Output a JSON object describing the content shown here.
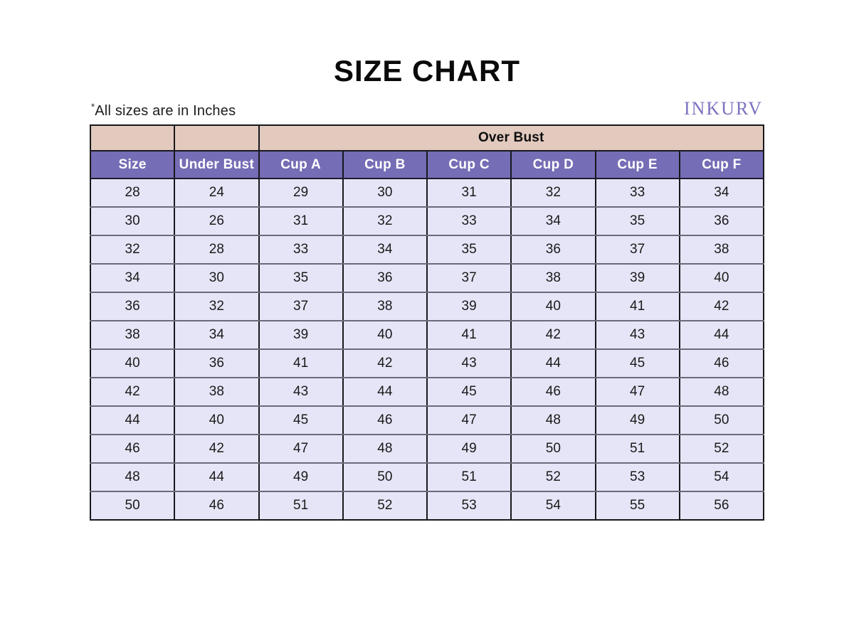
{
  "header": {
    "title": "SIZE CHART",
    "note_star": "*",
    "note_text": "All sizes are in Inches",
    "brand": "INKURV"
  },
  "chart_data": {
    "type": "table",
    "title": "SIZE CHART",
    "over_bust_label": "Over Bust",
    "over_bust_span_columns": [
      "Cup A",
      "Cup B",
      "Cup C",
      "Cup D",
      "Cup E",
      "Cup F"
    ],
    "columns": [
      "Size",
      "Under Bust",
      "Cup A",
      "Cup B",
      "Cup C",
      "Cup D",
      "Cup E",
      "Cup F"
    ],
    "rows": [
      [
        28,
        24,
        29,
        30,
        31,
        32,
        33,
        34
      ],
      [
        30,
        26,
        31,
        32,
        33,
        34,
        35,
        36
      ],
      [
        32,
        28,
        33,
        34,
        35,
        36,
        37,
        38
      ],
      [
        34,
        30,
        35,
        36,
        37,
        38,
        39,
        40
      ],
      [
        36,
        32,
        37,
        38,
        39,
        40,
        41,
        42
      ],
      [
        38,
        34,
        39,
        40,
        41,
        42,
        43,
        44
      ],
      [
        40,
        36,
        41,
        42,
        43,
        44,
        45,
        46
      ],
      [
        42,
        38,
        43,
        44,
        45,
        46,
        47,
        48
      ],
      [
        44,
        40,
        45,
        46,
        47,
        48,
        49,
        50
      ],
      [
        46,
        42,
        47,
        48,
        49,
        50,
        51,
        52
      ],
      [
        48,
        44,
        49,
        50,
        51,
        52,
        53,
        54
      ],
      [
        50,
        46,
        51,
        52,
        53,
        54,
        55,
        56
      ]
    ],
    "units": "Inches"
  },
  "colors": {
    "over_bust_bg": "#e3cabf",
    "column_header_bg": "#756db5",
    "cell_bg": "#e6e5f7",
    "brand_color": "#7b72c0"
  }
}
